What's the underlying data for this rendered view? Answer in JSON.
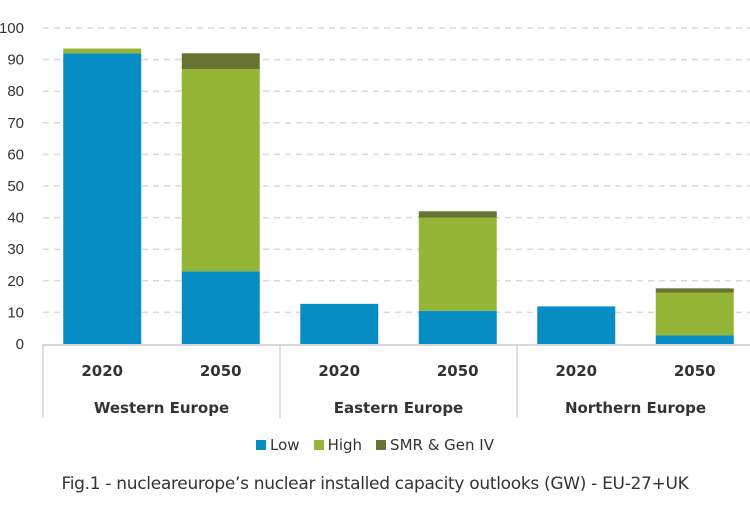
{
  "chart_data": {
    "type": "bar",
    "stacked": true,
    "title": "Fig.1 - nucleareurope’s nuclear installed capacity outlooks (GW) - EU-27+UK",
    "groups": [
      "Western Europe",
      "Eastern Europe",
      "Northern Europe"
    ],
    "categories": [
      "2020",
      "2050",
      "2020",
      "2050",
      "2020",
      "2050"
    ],
    "category_groups": [
      "Western Europe",
      "Western Europe",
      "Eastern Europe",
      "Eastern Europe",
      "Northern Europe",
      "Northern Europe"
    ],
    "series": [
      {
        "name": "Low",
        "color": "#058dc4",
        "values": [
          92,
          23,
          12.7,
          10.5,
          11.9,
          2.7
        ]
      },
      {
        "name": "High",
        "color": "#95b537",
        "values": [
          1.5,
          64,
          0,
          29.5,
          0,
          13.6
        ]
      },
      {
        "name": "SMR & Gen IV",
        "color": "#667333",
        "values": [
          0,
          5,
          0,
          2,
          0,
          1.3
        ]
      }
    ],
    "ylim": [
      0,
      100
    ],
    "yticks": [
      0,
      10,
      20,
      30,
      40,
      50,
      60,
      70,
      80,
      90,
      100
    ],
    "grid": true,
    "legend_position": "bottom",
    "xlabel": "",
    "ylabel": ""
  }
}
